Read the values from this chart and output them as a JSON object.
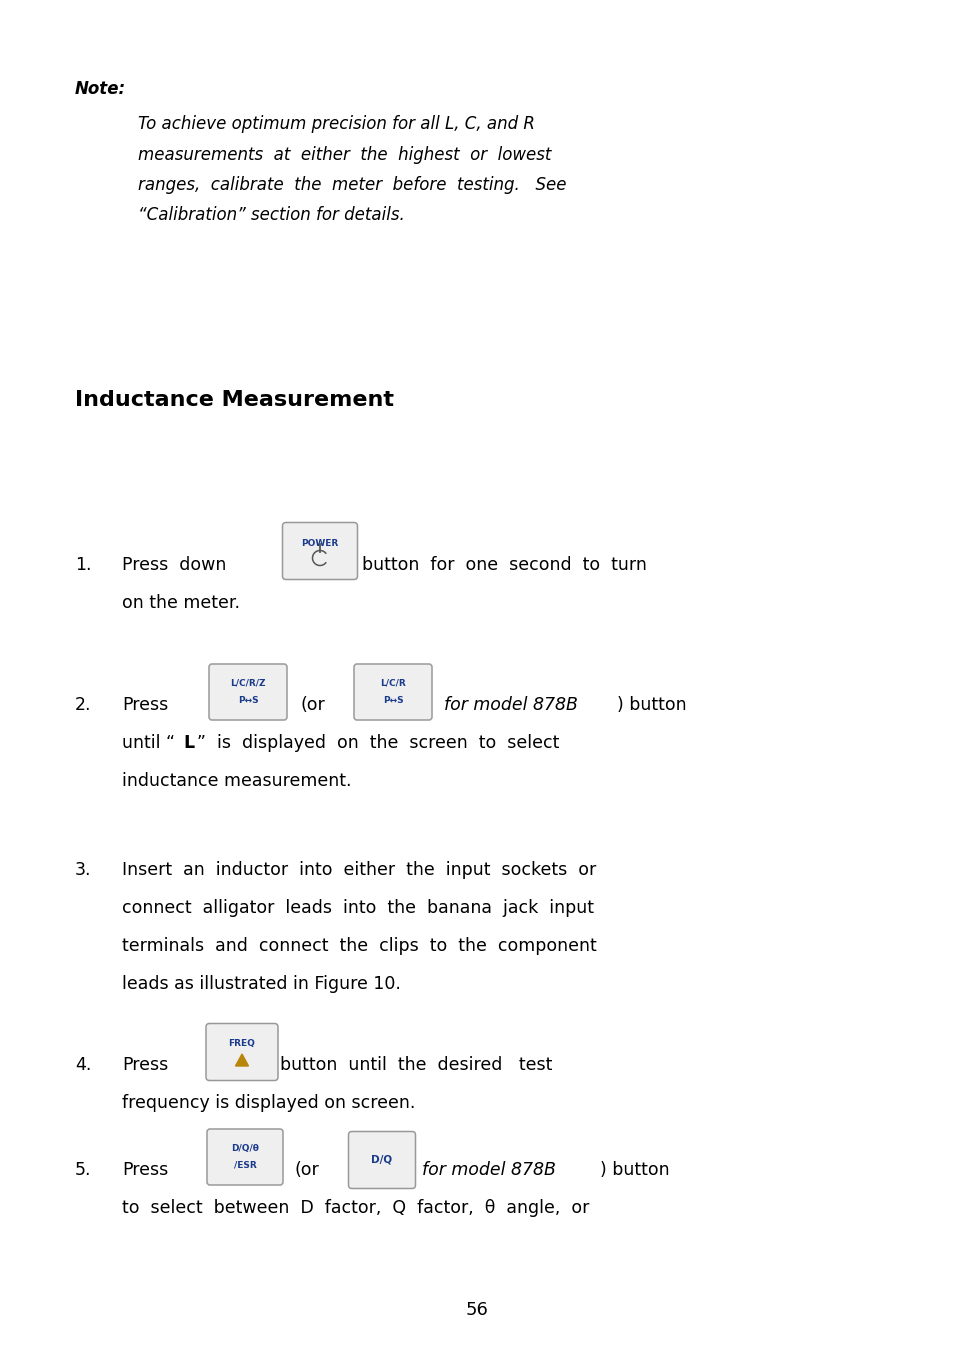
{
  "bg_color": "#ffffff",
  "text_color": "#000000",
  "blue_color": "#1a3a8c",
  "gold_color": "#b8860b",
  "page_number": "56",
  "note_label": "Note:",
  "note_lines": [
    "To achieve optimum precision for all L, C, and R",
    "measurements  at  either  the  highest  or  lowest",
    "ranges,  calibrate  the  meter  before  testing.   See",
    "“Calibration” section for details."
  ],
  "section_title": "Inductance Measurement",
  "item2_bold_L": "“L”",
  "item5_italic": "for model 878B"
}
